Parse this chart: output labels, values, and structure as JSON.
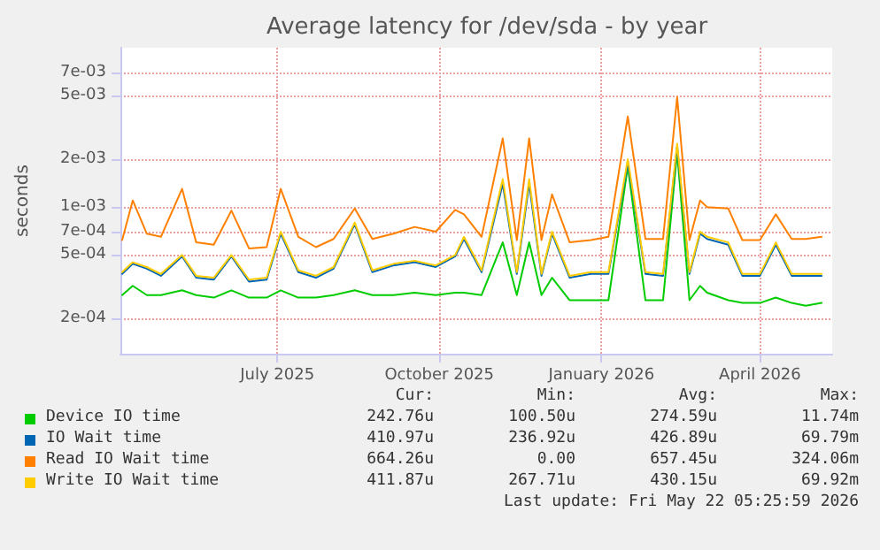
{
  "chart_data": {
    "type": "line",
    "title": "Average latency for /dev/sda - by year",
    "ylabel": "seconds",
    "log": "y",
    "x": [
      "2025-04-04",
      "2025-04-10",
      "2025-04-18",
      "2025-04-26",
      "2025-05-08",
      "2025-05-16",
      "2025-05-26",
      "2025-06-05",
      "2025-06-15",
      "2025-06-25",
      "2025-07-03",
      "2025-07-13",
      "2025-07-23",
      "2025-08-02",
      "2025-08-14",
      "2025-08-24",
      "2025-09-05",
      "2025-09-17",
      "2025-09-29",
      "2025-10-10",
      "2025-10-15",
      "2025-10-25",
      "2025-11-06",
      "2025-11-14",
      "2025-11-21",
      "2025-11-28",
      "2025-12-04",
      "2025-12-14",
      "2025-12-26",
      "2026-01-05",
      "2026-01-16",
      "2026-01-26",
      "2026-02-05",
      "2026-02-13",
      "2026-02-20",
      "2026-02-26",
      "2026-03-02",
      "2026-03-14",
      "2026-03-22",
      "2026-04-01",
      "2026-04-10",
      "2026-04-19",
      "2026-04-27",
      "2026-05-06"
    ],
    "xlim": [
      "2025-04-03",
      "2026-05-12"
    ],
    "xticks": [
      {
        "value": "2025-07-01",
        "label": "July 2025"
      },
      {
        "value": "2025-10-01",
        "label": "October 2025"
      },
      {
        "value": "2026-01-01",
        "label": "January 2026"
      },
      {
        "value": "2026-04-01",
        "label": "April 2026"
      }
    ],
    "ylim": [
      0.00012,
      0.01
    ],
    "yticks": [
      {
        "value": 0.0002,
        "label": "2e-04"
      },
      {
        "value": 0.0005,
        "label": "5e-04"
      },
      {
        "value": 0.0007,
        "label": "7e-04"
      },
      {
        "value": 0.001,
        "label": "1e-03"
      },
      {
        "value": 0.002,
        "label": "2e-03"
      },
      {
        "value": 0.005,
        "label": "5e-03"
      },
      {
        "value": 0.007,
        "label": "7e-03"
      }
    ],
    "grid": true,
    "legend": "bottom",
    "marker": "none",
    "line_style": "solid",
    "series": [
      {
        "name": "Device IO time",
        "color": "#00cc00",
        "values": [
          0.00028,
          0.00032,
          0.00028,
          0.00028,
          0.0003,
          0.00028,
          0.00027,
          0.0003,
          0.00027,
          0.00027,
          0.0003,
          0.00027,
          0.00027,
          0.00028,
          0.0003,
          0.00028,
          0.00028,
          0.00029,
          0.00028,
          0.00029,
          0.00029,
          0.00028,
          0.0006,
          0.00028,
          0.0006,
          0.00028,
          0.00036,
          0.00026,
          0.00026,
          0.00026,
          0.0018,
          0.00026,
          0.00026,
          0.0022,
          0.00026,
          0.00032,
          0.00029,
          0.00026,
          0.00025,
          0.00025,
          0.00027,
          0.00025,
          0.00024,
          0.00025
        ]
      },
      {
        "name": "IO Wait time",
        "color": "#0066b3",
        "values": [
          0.00038,
          0.00044,
          0.00041,
          0.00037,
          0.00049,
          0.00036,
          0.00035,
          0.00049,
          0.00034,
          0.00035,
          0.00068,
          0.00039,
          0.00036,
          0.00041,
          0.00078,
          0.00039,
          0.00043,
          0.00045,
          0.00042,
          0.00049,
          0.00063,
          0.00039,
          0.0014,
          0.00038,
          0.0014,
          0.00037,
          0.00068,
          0.00036,
          0.00038,
          0.00038,
          0.0019,
          0.00038,
          0.00037,
          0.0024,
          0.00038,
          0.00068,
          0.00063,
          0.00058,
          0.00037,
          0.00037,
          0.00058,
          0.00037,
          0.00037,
          0.00037
        ]
      },
      {
        "name": "Read IO Wait time",
        "color": "#ff8000",
        "values": [
          0.00062,
          0.0011,
          0.00068,
          0.00065,
          0.0013,
          0.0006,
          0.00058,
          0.00095,
          0.00055,
          0.00056,
          0.0013,
          0.00065,
          0.00056,
          0.00063,
          0.00098,
          0.00063,
          0.00068,
          0.00075,
          0.0007,
          0.00096,
          0.0009,
          0.00065,
          0.0027,
          0.00062,
          0.0027,
          0.00062,
          0.0012,
          0.0006,
          0.00062,
          0.00065,
          0.0037,
          0.00063,
          0.00063,
          0.0049,
          0.00062,
          0.0011,
          0.001,
          0.00098,
          0.00062,
          0.00062,
          0.0009,
          0.00063,
          0.00063,
          0.00065
        ]
      },
      {
        "name": "Write IO Wait time",
        "color": "#ffcc00",
        "values": [
          0.00039,
          0.00045,
          0.00042,
          0.00038,
          0.0005,
          0.00037,
          0.00036,
          0.0005,
          0.00035,
          0.00036,
          0.0007,
          0.0004,
          0.00037,
          0.00042,
          0.0008,
          0.0004,
          0.00044,
          0.00046,
          0.00043,
          0.0005,
          0.00065,
          0.0004,
          0.0015,
          0.00039,
          0.0015,
          0.00038,
          0.0007,
          0.00037,
          0.00039,
          0.00039,
          0.002,
          0.00039,
          0.00038,
          0.0025,
          0.00039,
          0.0007,
          0.00065,
          0.0006,
          0.00038,
          0.00038,
          0.0006,
          0.00038,
          0.00038,
          0.00038
        ]
      }
    ],
    "annotations": [
      "Cur:",
      "Min:",
      "Avg:",
      "Max:",
      "242.76u",
      "100.50u",
      "274.59u",
      "11.74m",
      "410.97u",
      "236.92u",
      "426.89u",
      "69.79m",
      "664.26u",
      "0.00",
      "657.45u",
      "324.06m",
      "411.87u",
      "267.71u",
      "430.15u",
      "69.92m",
      "Last update: Fri May 22 05:25:59 2026"
    ]
  }
}
